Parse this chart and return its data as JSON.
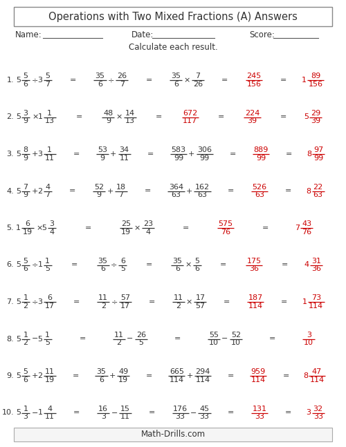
{
  "title": "Operations with Two Mixed Fractions (A) Answers",
  "instruction": "Calculate each result.",
  "footer": "Math-Drills.com",
  "bg_color": "#ffffff",
  "text_color": "#333333",
  "answer_color": "#cc0000",
  "problems": [
    {
      "num": "1.",
      "steps": [
        [
          {
            "t": "mixed",
            "w": "5",
            "n": "5",
            "d": "6",
            "c": "k"
          },
          {
            "t": "op",
            "s": "÷",
            "c": "k"
          },
          {
            "t": "mixed",
            "w": "3",
            "n": "5",
            "d": "7",
            "c": "k"
          }
        ],
        [
          {
            "t": "frac",
            "n": "35",
            "d": "6",
            "c": "k"
          },
          {
            "t": "op",
            "s": "÷",
            "c": "k"
          },
          {
            "t": "frac",
            "n": "26",
            "d": "7",
            "c": "k"
          }
        ],
        [
          {
            "t": "frac",
            "n": "35",
            "d": "6",
            "c": "k"
          },
          {
            "t": "op",
            "s": "×",
            "c": "k"
          },
          {
            "t": "frac",
            "n": "7",
            "d": "26",
            "c": "k"
          }
        ],
        [
          {
            "t": "frac",
            "n": "245",
            "d": "156",
            "c": "r"
          }
        ],
        [
          {
            "t": "mixed",
            "w": "1",
            "n": "89",
            "d": "156",
            "c": "r"
          }
        ]
      ]
    },
    {
      "num": "2.",
      "steps": [
        [
          {
            "t": "mixed",
            "w": "5",
            "n": "3",
            "d": "9",
            "c": "k"
          },
          {
            "t": "op",
            "s": "×",
            "c": "k"
          },
          {
            "t": "mixed",
            "w": "1",
            "n": "1",
            "d": "13",
            "c": "k"
          }
        ],
        [
          {
            "t": "frac",
            "n": "48",
            "d": "9",
            "c": "k"
          },
          {
            "t": "op",
            "s": "×",
            "c": "k"
          },
          {
            "t": "frac",
            "n": "14",
            "d": "13",
            "c": "k"
          }
        ],
        [
          {
            "t": "frac",
            "n": "672",
            "d": "117",
            "c": "r"
          }
        ],
        [
          {
            "t": "frac",
            "n": "224",
            "d": "39",
            "c": "r"
          }
        ],
        [
          {
            "t": "mixed",
            "w": "5",
            "n": "29",
            "d": "39",
            "c": "r"
          }
        ]
      ]
    },
    {
      "num": "3.",
      "steps": [
        [
          {
            "t": "mixed",
            "w": "5",
            "n": "8",
            "d": "9",
            "c": "k"
          },
          {
            "t": "op",
            "s": "+",
            "c": "k"
          },
          {
            "t": "mixed",
            "w": "3",
            "n": "1",
            "d": "11",
            "c": "k"
          }
        ],
        [
          {
            "t": "frac",
            "n": "53",
            "d": "9",
            "c": "k"
          },
          {
            "t": "op",
            "s": "+",
            "c": "k"
          },
          {
            "t": "frac",
            "n": "34",
            "d": "11",
            "c": "k"
          }
        ],
        [
          {
            "t": "frac",
            "n": "583",
            "d": "99",
            "c": "k"
          },
          {
            "t": "op",
            "s": "+",
            "c": "k"
          },
          {
            "t": "frac",
            "n": "306",
            "d": "99",
            "c": "k"
          }
        ],
        [
          {
            "t": "frac",
            "n": "889",
            "d": "99",
            "c": "r"
          }
        ],
        [
          {
            "t": "mixed",
            "w": "8",
            "n": "97",
            "d": "99",
            "c": "r"
          }
        ]
      ]
    },
    {
      "num": "4.",
      "steps": [
        [
          {
            "t": "mixed",
            "w": "5",
            "n": "7",
            "d": "9",
            "c": "k"
          },
          {
            "t": "op",
            "s": "+",
            "c": "k"
          },
          {
            "t": "mixed",
            "w": "2",
            "n": "4",
            "d": "7",
            "c": "k"
          }
        ],
        [
          {
            "t": "frac",
            "n": "52",
            "d": "9",
            "c": "k"
          },
          {
            "t": "op",
            "s": "+",
            "c": "k"
          },
          {
            "t": "frac",
            "n": "18",
            "d": "7",
            "c": "k"
          }
        ],
        [
          {
            "t": "frac",
            "n": "364",
            "d": "63",
            "c": "k"
          },
          {
            "t": "op",
            "s": "+",
            "c": "k"
          },
          {
            "t": "frac",
            "n": "162",
            "d": "63",
            "c": "k"
          }
        ],
        [
          {
            "t": "frac",
            "n": "526",
            "d": "63",
            "c": "r"
          }
        ],
        [
          {
            "t": "mixed",
            "w": "8",
            "n": "22",
            "d": "63",
            "c": "r"
          }
        ]
      ]
    },
    {
      "num": "5.",
      "steps": [
        [
          {
            "t": "mixed",
            "w": "1",
            "n": "6",
            "d": "19",
            "c": "k"
          },
          {
            "t": "op",
            "s": "×",
            "c": "k"
          },
          {
            "t": "mixed",
            "w": "5",
            "n": "3",
            "d": "4",
            "c": "k"
          }
        ],
        [
          {
            "t": "frac",
            "n": "25",
            "d": "19",
            "c": "k"
          },
          {
            "t": "op",
            "s": "×",
            "c": "k"
          },
          {
            "t": "frac",
            "n": "23",
            "d": "4",
            "c": "k"
          }
        ],
        [
          {
            "t": "frac",
            "n": "575",
            "d": "76",
            "c": "r"
          }
        ],
        [
          {
            "t": "mixed",
            "w": "7",
            "n": "43",
            "d": "76",
            "c": "r"
          }
        ]
      ]
    },
    {
      "num": "6.",
      "steps": [
        [
          {
            "t": "mixed",
            "w": "5",
            "n": "5",
            "d": "6",
            "c": "k"
          },
          {
            "t": "op",
            "s": "÷",
            "c": "k"
          },
          {
            "t": "mixed",
            "w": "1",
            "n": "1",
            "d": "5",
            "c": "k"
          }
        ],
        [
          {
            "t": "frac",
            "n": "35",
            "d": "6",
            "c": "k"
          },
          {
            "t": "op",
            "s": "÷",
            "c": "k"
          },
          {
            "t": "frac",
            "n": "6",
            "d": "5",
            "c": "k"
          }
        ],
        [
          {
            "t": "frac",
            "n": "35",
            "d": "6",
            "c": "k"
          },
          {
            "t": "op",
            "s": "×",
            "c": "k"
          },
          {
            "t": "frac",
            "n": "5",
            "d": "6",
            "c": "k"
          }
        ],
        [
          {
            "t": "frac",
            "n": "175",
            "d": "36",
            "c": "r"
          }
        ],
        [
          {
            "t": "mixed",
            "w": "4",
            "n": "31",
            "d": "36",
            "c": "r"
          }
        ]
      ]
    },
    {
      "num": "7.",
      "steps": [
        [
          {
            "t": "mixed",
            "w": "5",
            "n": "1",
            "d": "2",
            "c": "k"
          },
          {
            "t": "op",
            "s": "÷",
            "c": "k"
          },
          {
            "t": "mixed",
            "w": "3",
            "n": "6",
            "d": "17",
            "c": "k"
          }
        ],
        [
          {
            "t": "frac",
            "n": "11",
            "d": "2",
            "c": "k"
          },
          {
            "t": "op",
            "s": "÷",
            "c": "k"
          },
          {
            "t": "frac",
            "n": "57",
            "d": "17",
            "c": "k"
          }
        ],
        [
          {
            "t": "frac",
            "n": "11",
            "d": "2",
            "c": "k"
          },
          {
            "t": "op",
            "s": "×",
            "c": "k"
          },
          {
            "t": "frac",
            "n": "17",
            "d": "57",
            "c": "k"
          }
        ],
        [
          {
            "t": "frac",
            "n": "187",
            "d": "114",
            "c": "r"
          }
        ],
        [
          {
            "t": "mixed",
            "w": "1",
            "n": "73",
            "d": "114",
            "c": "r"
          }
        ]
      ]
    },
    {
      "num": "8.",
      "steps": [
        [
          {
            "t": "mixed",
            "w": "5",
            "n": "1",
            "d": "2",
            "c": "k"
          },
          {
            "t": "op",
            "s": "−",
            "c": "k"
          },
          {
            "t": "mixed",
            "w": "5",
            "n": "1",
            "d": "5",
            "c": "k"
          }
        ],
        [
          {
            "t": "frac",
            "n": "11",
            "d": "2",
            "c": "k"
          },
          {
            "t": "op",
            "s": "−",
            "c": "k"
          },
          {
            "t": "frac",
            "n": "26",
            "d": "5",
            "c": "k"
          }
        ],
        [
          {
            "t": "frac",
            "n": "55",
            "d": "10",
            "c": "k"
          },
          {
            "t": "op",
            "s": "−",
            "c": "k"
          },
          {
            "t": "frac",
            "n": "52",
            "d": "10",
            "c": "k"
          }
        ],
        [
          {
            "t": "frac",
            "n": "3",
            "d": "10",
            "c": "r"
          }
        ]
      ]
    },
    {
      "num": "9.",
      "steps": [
        [
          {
            "t": "mixed",
            "w": "5",
            "n": "5",
            "d": "6",
            "c": "k"
          },
          {
            "t": "op",
            "s": "+",
            "c": "k"
          },
          {
            "t": "mixed",
            "w": "2",
            "n": "11",
            "d": "19",
            "c": "k"
          }
        ],
        [
          {
            "t": "frac",
            "n": "35",
            "d": "6",
            "c": "k"
          },
          {
            "t": "op",
            "s": "+",
            "c": "k"
          },
          {
            "t": "frac",
            "n": "49",
            "d": "19",
            "c": "k"
          }
        ],
        [
          {
            "t": "frac",
            "n": "665",
            "d": "114",
            "c": "k"
          },
          {
            "t": "op",
            "s": "+",
            "c": "k"
          },
          {
            "t": "frac",
            "n": "294",
            "d": "114",
            "c": "k"
          }
        ],
        [
          {
            "t": "frac",
            "n": "959",
            "d": "114",
            "c": "r"
          }
        ],
        [
          {
            "t": "mixed",
            "w": "8",
            "n": "47",
            "d": "114",
            "c": "r"
          }
        ]
      ]
    },
    {
      "num": "10.",
      "steps": [
        [
          {
            "t": "mixed",
            "w": "5",
            "n": "1",
            "d": "3",
            "c": "k"
          },
          {
            "t": "op",
            "s": "−",
            "c": "k"
          },
          {
            "t": "mixed",
            "w": "1",
            "n": "4",
            "d": "11",
            "c": "k"
          }
        ],
        [
          {
            "t": "frac",
            "n": "16",
            "d": "3",
            "c": "k"
          },
          {
            "t": "op",
            "s": "−",
            "c": "k"
          },
          {
            "t": "frac",
            "n": "15",
            "d": "11",
            "c": "k"
          }
        ],
        [
          {
            "t": "frac",
            "n": "176",
            "d": "33",
            "c": "k"
          },
          {
            "t": "op",
            "s": "−",
            "c": "k"
          },
          {
            "t": "frac",
            "n": "45",
            "d": "33",
            "c": "k"
          }
        ],
        [
          {
            "t": "frac",
            "n": "131",
            "d": "33",
            "c": "r"
          }
        ],
        [
          {
            "t": "mixed",
            "w": "3",
            "n": "32",
            "d": "33",
            "c": "r"
          }
        ]
      ]
    }
  ]
}
